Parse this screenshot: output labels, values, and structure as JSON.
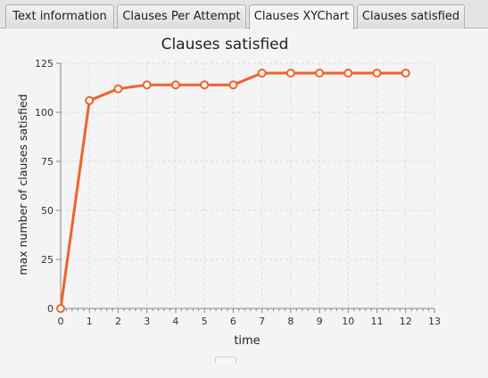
{
  "tabs": [
    {
      "label": "Text information",
      "selected": false
    },
    {
      "label": "Clauses Per Attempt",
      "selected": false
    },
    {
      "label": "Clauses XYChart",
      "selected": true
    },
    {
      "label": "Clauses satisfied",
      "selected": false
    }
  ],
  "chart_data": {
    "type": "line",
    "title": "Clauses satisfied",
    "xlabel": "time",
    "ylabel": "max number of clauses satisfied",
    "xlim": [
      0,
      13
    ],
    "ylim": [
      0,
      125
    ],
    "x_ticks": [
      0,
      1,
      2,
      3,
      4,
      5,
      6,
      7,
      8,
      9,
      10,
      11,
      12,
      13
    ],
    "y_ticks": [
      0,
      25,
      50,
      75,
      100,
      125
    ],
    "grid": true,
    "legend": "none",
    "series": [
      {
        "color": "#f0622b",
        "x": [
          0,
          1,
          2,
          3,
          4,
          5,
          6,
          7,
          8,
          9,
          10,
          11,
          12
        ],
        "y": [
          0,
          106,
          112,
          114,
          114,
          114,
          114,
          120,
          120,
          120,
          120,
          120,
          120
        ]
      }
    ]
  }
}
